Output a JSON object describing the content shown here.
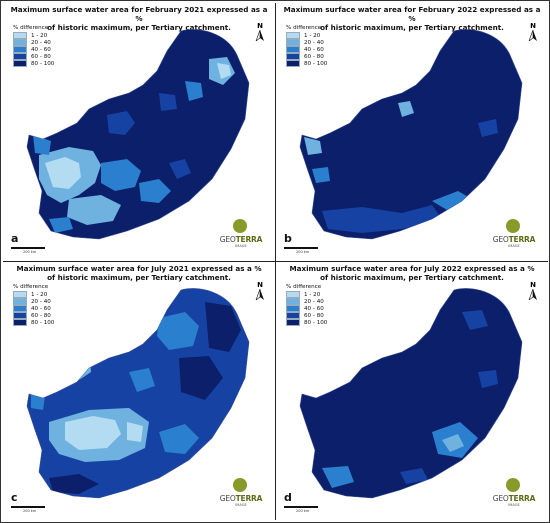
{
  "legend": {
    "title": "% difference",
    "classes": [
      {
        "label": "1 - 20",
        "color": "#b3dcf2"
      },
      {
        "label": "20 - 40",
        "color": "#6fb2e0"
      },
      {
        "label": "40 - 60",
        "color": "#2a7fce"
      },
      {
        "label": "60 - 80",
        "color": "#1643a3"
      },
      {
        "label": "80 - 100",
        "color": "#0b1f6b"
      }
    ]
  },
  "north_label": "N",
  "scale_label": "200 km",
  "logo": {
    "name_light": "GEO",
    "name_bold": "TERRA",
    "sub": "IMAGE"
  },
  "panels": [
    {
      "letter": "a",
      "title_line1": "Maximum surface water area for February 2021 expressed as a %",
      "title_line2": "of historic maximum, per Tertiary catchment.",
      "show_legend": true
    },
    {
      "letter": "b",
      "title_line1": "Maximum surface water area for February 2022 expressed as a %",
      "title_line2": "of historic maximum, per Tertiary catchment.",
      "show_legend": true
    },
    {
      "letter": "c",
      "title_line1": "Maximum surface water area for July 2021 expressed as a %",
      "title_line2": "of historic maximum, per Tertiary catchment.",
      "show_legend": true
    },
    {
      "letter": "d",
      "title_line1": "Maximum surface water area for July 2022 expressed as a %",
      "title_line2": "of historic maximum, per Tertiary catchment.",
      "show_legend": true
    }
  ]
}
